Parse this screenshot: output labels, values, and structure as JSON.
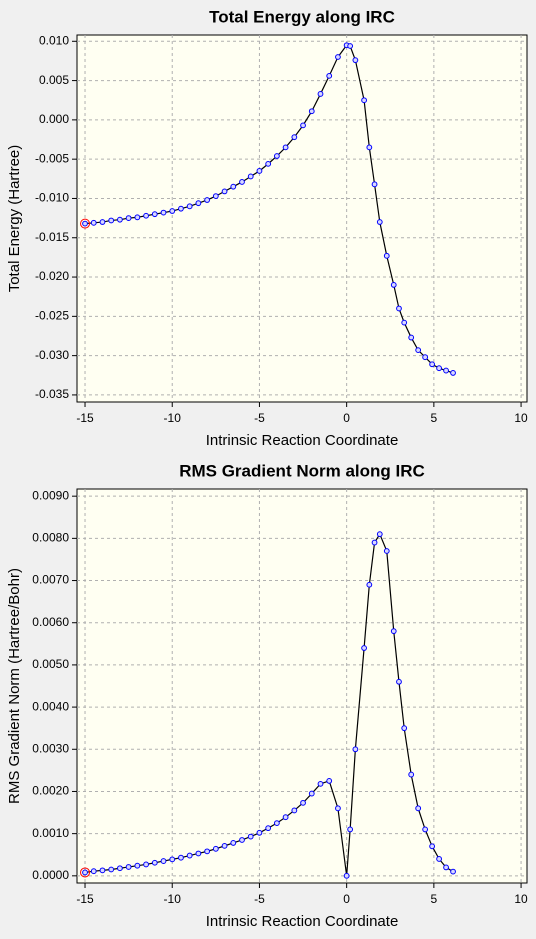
{
  "chart_data": [
    {
      "type": "line",
      "title": "Total Energy along IRC",
      "xlabel": "Intrinsic Reaction Coordinate",
      "ylabel": "Total Energy (Hartree)",
      "x": [
        -15,
        -14.5,
        -14,
        -13.5,
        -13,
        -12.5,
        -12,
        -11.5,
        -11,
        -10.5,
        -10,
        -9.5,
        -9,
        -8.5,
        -8,
        -7.5,
        -7,
        -6.5,
        -6,
        -5.5,
        -5,
        -4.5,
        -4,
        -3.5,
        -3,
        -2.5,
        -2,
        -1.5,
        -1,
        -0.5,
        0,
        0.2,
        0.5,
        1.0,
        1.3,
        1.6,
        1.9,
        2.3,
        2.7,
        3.0,
        3.3,
        3.7,
        4.1,
        4.5,
        4.9,
        5.3,
        5.7,
        6.1
      ],
      "values": [
        -0.0132,
        -0.0131,
        -0.013,
        -0.0128,
        -0.0127,
        -0.0125,
        -0.0124,
        -0.0122,
        -0.012,
        -0.0118,
        -0.0116,
        -0.0113,
        -0.011,
        -0.0106,
        -0.0102,
        -0.0097,
        -0.0091,
        -0.0085,
        -0.0079,
        -0.0072,
        -0.0065,
        -0.0056,
        -0.0046,
        -0.0035,
        -0.0022,
        -0.0007,
        0.0011,
        0.0033,
        0.0056,
        0.008,
        0.0095,
        0.0094,
        0.0076,
        0.0025,
        -0.0035,
        -0.0082,
        -0.013,
        -0.0173,
        -0.021,
        -0.024,
        -0.0258,
        -0.0277,
        -0.0293,
        -0.0302,
        -0.0311,
        -0.0316,
        -0.0319,
        -0.0322
      ],
      "color": "#000000",
      "marker_color": "#0000ff",
      "marker_fill": "#d8d8ff",
      "highlight_color": "#ff0000",
      "plot_background": "#fffff2",
      "grid": true,
      "xlim": [
        -15.46,
        10.34
      ],
      "xticks": [
        -15,
        -10,
        -5,
        0,
        5,
        10
      ],
      "ylim": [
        -0.0359,
        0.0108
      ],
      "yticks": [
        {
          "value": 0.01,
          "label": "0.010"
        },
        {
          "value": 0.005,
          "label": "0.005"
        },
        {
          "value": 0,
          "label": "0.000"
        },
        {
          "value": -0.005,
          "label": "-0.005"
        },
        {
          "value": -0.01,
          "label": "-0.010"
        },
        {
          "value": -0.015,
          "label": "-0.015"
        },
        {
          "value": -0.02,
          "label": "-0.020"
        },
        {
          "value": -0.025,
          "label": "-0.025"
        },
        {
          "value": -0.03,
          "label": "-0.030"
        },
        {
          "value": -0.035,
          "label": "-0.035"
        }
      ]
    },
    {
      "type": "line",
      "title": "RMS Gradient Norm along IRC",
      "xlabel": "Intrinsic Reaction Coordinate",
      "ylabel": "RMS Gradient Norm (Hartree/Bohr)",
      "x": [
        -15,
        -14.5,
        -14,
        -13.5,
        -13,
        -12.5,
        -12,
        -11.5,
        -11,
        -10.5,
        -10,
        -9.5,
        -9,
        -8.5,
        -8,
        -7.5,
        -7,
        -6.5,
        -6,
        -5.5,
        -5,
        -4.5,
        -4,
        -3.5,
        -3,
        -2.5,
        -2,
        -1.5,
        -1,
        -0.5,
        0,
        0.2,
        0.5,
        1.0,
        1.3,
        1.6,
        1.9,
        2.3,
        2.7,
        3.0,
        3.3,
        3.7,
        4.1,
        4.5,
        4.9,
        5.3,
        5.7,
        6.1
      ],
      "values": [
        8e-05,
        0.00011,
        0.00013,
        0.00015,
        0.00018,
        0.00021,
        0.00024,
        0.00027,
        0.00031,
        0.00035,
        0.00039,
        0.00043,
        0.00048,
        0.00053,
        0.00058,
        0.00064,
        0.00071,
        0.00078,
        0.00085,
        0.00093,
        0.00102,
        0.00113,
        0.00125,
        0.00139,
        0.00155,
        0.00173,
        0.00195,
        0.00218,
        0.00225,
        0.0016,
        0.0,
        0.0011,
        0.003,
        0.0054,
        0.0069,
        0.0079,
        0.0081,
        0.0077,
        0.0058,
        0.0046,
        0.0035,
        0.0024,
        0.0016,
        0.0011,
        0.0007,
        0.0004,
        0.0002,
        0.0001
      ],
      "color": "#000000",
      "marker_color": "#0000ff",
      "marker_fill": "#d8d8ff",
      "highlight_color": "#ff0000",
      "plot_background": "#fffff2",
      "grid": true,
      "xlim": [
        -15.46,
        10.34
      ],
      "xticks": [
        -15,
        -10,
        -5,
        0,
        5,
        10
      ],
      "ylim": [
        -0.00017,
        0.00917
      ],
      "yticks": [
        {
          "value": 0.009,
          "label": "0.0090"
        },
        {
          "value": 0.008,
          "label": "0.0080"
        },
        {
          "value": 0.007,
          "label": "0.0070"
        },
        {
          "value": 0.006,
          "label": "0.0060"
        },
        {
          "value": 0.005,
          "label": "0.0050"
        },
        {
          "value": 0.004,
          "label": "0.0040"
        },
        {
          "value": 0.003,
          "label": "0.0030"
        },
        {
          "value": 0.002,
          "label": "0.0020"
        },
        {
          "value": 0.001,
          "label": "0.0010"
        },
        {
          "value": 0,
          "label": "0.0000"
        }
      ]
    }
  ]
}
